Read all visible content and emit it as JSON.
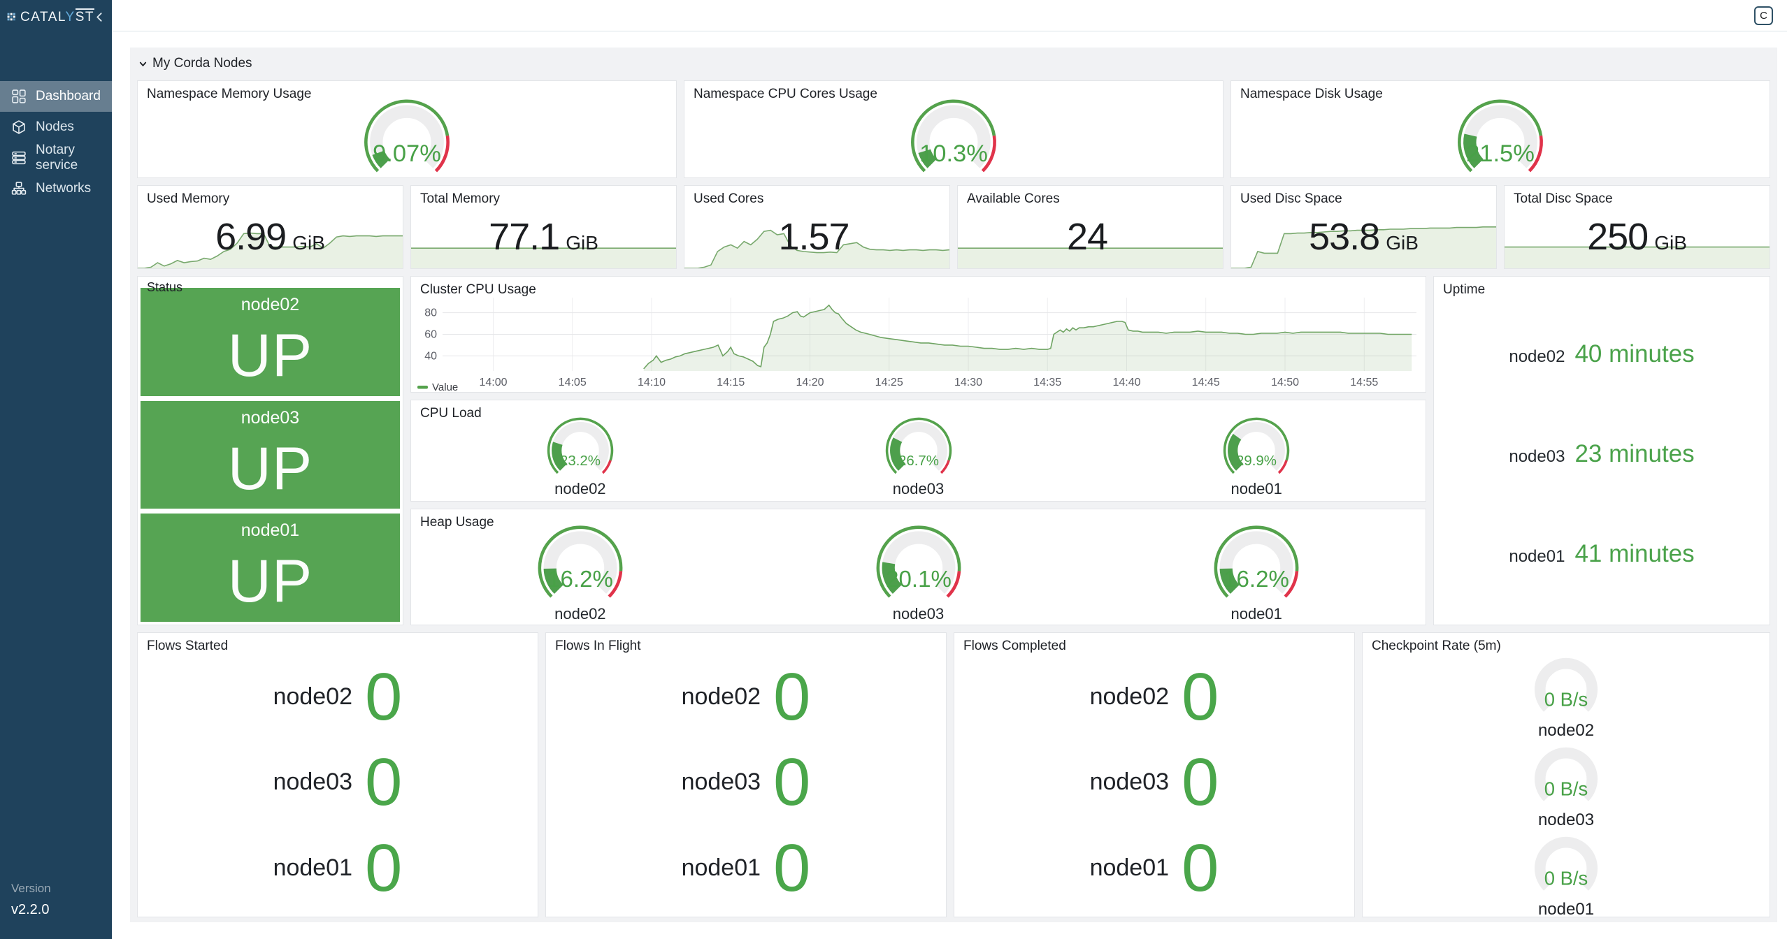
{
  "app": {
    "logo_prefix": "CATAL",
    "logo_y": "Y",
    "logo_suffix": "ST",
    "profile_button": "C"
  },
  "sidebar": {
    "items": [
      {
        "label": "Dashboard",
        "active": true
      },
      {
        "label": "Nodes",
        "active": false
      },
      {
        "label": "Notary service",
        "active": false
      },
      {
        "label": "Networks",
        "active": false
      }
    ],
    "version_label": "Version",
    "version_value": "v2.2.0"
  },
  "row_header": {
    "title": "My Corda Nodes"
  },
  "gauge_panels": [
    {
      "title": "Namespace Memory Usage",
      "text": "9.07%",
      "fraction": 0.0907,
      "threshold": 0.8
    },
    {
      "title": "Namespace CPU Cores Usage",
      "text": "10.3%",
      "fraction": 0.103,
      "threshold": 0.8
    },
    {
      "title": "Namespace Disk Usage",
      "text": "21.5%",
      "fraction": 0.215,
      "threshold": 0.8
    }
  ],
  "stat_panels": [
    {
      "title": "Used Memory",
      "value": "6.99",
      "unit": "GiB",
      "spark": "used_memory_spark"
    },
    {
      "title": "Total Memory",
      "value": "77.1",
      "unit": "GiB",
      "spark": "total_memory_spark"
    },
    {
      "title": "Used Cores",
      "value": "1.57",
      "unit": "",
      "spark": "used_cores_spark"
    },
    {
      "title": "Available Cores",
      "value": "24",
      "unit": "",
      "spark": "available_cores_spark"
    },
    {
      "title": "Used Disc Space",
      "value": "53.8",
      "unit": "GiB",
      "spark": "used_disc_spark"
    },
    {
      "title": "Total Disc Space",
      "value": "250",
      "unit": "GiB",
      "spark": "total_disc_spark"
    }
  ],
  "status_panel": {
    "title": "Status",
    "nodes": [
      {
        "name": "node02",
        "state": "UP"
      },
      {
        "name": "node03",
        "state": "UP"
      },
      {
        "name": "node01",
        "state": "UP"
      }
    ]
  },
  "cluster_panel": {
    "title": "Cluster CPU Usage",
    "legend": "Value"
  },
  "uptime_panel": {
    "title": "Uptime",
    "rows": [
      {
        "node": "node02",
        "value": "40 minutes"
      },
      {
        "node": "node03",
        "value": "23 minutes"
      },
      {
        "node": "node01",
        "value": "41 minutes"
      }
    ]
  },
  "cpu_load_panel": {
    "title": "CPU Load",
    "threshold": 0.9,
    "gauges": [
      {
        "node": "node02",
        "text": "23.2%",
        "fraction": 0.232
      },
      {
        "node": "node03",
        "text": "26.7%",
        "fraction": 0.267
      },
      {
        "node": "node01",
        "text": "29.9%",
        "fraction": 0.299
      }
    ]
  },
  "heap_panel": {
    "title": "Heap Usage",
    "threshold": 0.85,
    "gauges": [
      {
        "node": "node02",
        "text": "16.2%",
        "fraction": 0.162
      },
      {
        "node": "node03",
        "text": "20.1%",
        "fraction": 0.201
      },
      {
        "node": "node01",
        "text": "16.2%",
        "fraction": 0.162
      }
    ]
  },
  "flow_panels": [
    {
      "title": "Flows Started",
      "rows": [
        {
          "node": "node02",
          "value": "0"
        },
        {
          "node": "node03",
          "value": "0"
        },
        {
          "node": "node01",
          "value": "0"
        }
      ]
    },
    {
      "title": "Flows In Flight",
      "rows": [
        {
          "node": "node02",
          "value": "0"
        },
        {
          "node": "node03",
          "value": "0"
        },
        {
          "node": "node01",
          "value": "0"
        }
      ]
    },
    {
      "title": "Flows Completed",
      "rows": [
        {
          "node": "node02",
          "value": "0"
        },
        {
          "node": "node03",
          "value": "0"
        },
        {
          "node": "node01",
          "value": "0"
        }
      ]
    }
  ],
  "checkpoint_panel": {
    "title": "Checkpoint Rate (5m)",
    "gauges": [
      {
        "node": "node02",
        "text": "0 B/s"
      },
      {
        "node": "node03",
        "text": "0 B/s"
      },
      {
        "node": "node01",
        "text": "0 B/s"
      }
    ]
  },
  "colors": {
    "green_text": "#48a147",
    "green_fill": "#4d9f4c",
    "green_box": "#56a453",
    "ring_green": "#54a24c",
    "ring_red": "#e0334a",
    "gauge_bg": "#ededee",
    "spark_line": "#79a96e",
    "spark_fill": "#e9f1e4",
    "chart_line": "#6fa463",
    "chart_fill": "rgba(111,164,99,0.14)"
  },
  "chart_data": [
    {
      "id": "cluster_cpu",
      "type": "line",
      "title": "Cluster CPU Usage",
      "xlabel": "",
      "ylabel": "",
      "ylim": [
        26,
        94
      ],
      "yticks": [
        40,
        60,
        80
      ],
      "xtick_minutes": [
        0,
        5,
        10,
        15,
        20,
        25,
        30,
        35,
        40,
        45,
        50,
        55
      ],
      "xtick_labels": [
        "14:00",
        "14:05",
        "14:10",
        "14:15",
        "14:20",
        "14:25",
        "14:30",
        "14:35",
        "14:40",
        "14:45",
        "14:50",
        "14:55"
      ],
      "xlim_minutes": [
        -3.2,
        58.3
      ],
      "legend": [
        "Value"
      ],
      "legend_position": "bottom-left",
      "grid": true,
      "points": [
        [
          9.5,
          28
        ],
        [
          9.8,
          33
        ],
        [
          10.1,
          36
        ],
        [
          10.3,
          40
        ],
        [
          10.6,
          34
        ],
        [
          10.9,
          36
        ],
        [
          11.2,
          37
        ],
        [
          11.5,
          39
        ],
        [
          11.8,
          40
        ],
        [
          12.1,
          42
        ],
        [
          12.4,
          43
        ],
        [
          12.7,
          44
        ],
        [
          13.0,
          45
        ],
        [
          13.3,
          46
        ],
        [
          13.6,
          47
        ],
        [
          13.9,
          48
        ],
        [
          14.2,
          50
        ],
        [
          14.5,
          40
        ],
        [
          14.8,
          44
        ],
        [
          15.0,
          48
        ],
        [
          15.2,
          42
        ],
        [
          15.5,
          40
        ],
        [
          15.8,
          39
        ],
        [
          16.1,
          37
        ],
        [
          16.4,
          35
        ],
        [
          16.7,
          31
        ],
        [
          16.9,
          30
        ],
        [
          17.1,
          48
        ],
        [
          17.3,
          52
        ],
        [
          17.5,
          60
        ],
        [
          17.7,
          72
        ],
        [
          18.0,
          74
        ],
        [
          18.3,
          75
        ],
        [
          18.6,
          77
        ],
        [
          18.9,
          80
        ],
        [
          19.2,
          81
        ],
        [
          19.4,
          77
        ],
        [
          19.6,
          76
        ],
        [
          19.8,
          78
        ],
        [
          20.0,
          80
        ],
        [
          20.3,
          81
        ],
        [
          20.6,
          82
        ],
        [
          20.9,
          83
        ],
        [
          21.2,
          87
        ],
        [
          21.4,
          83
        ],
        [
          21.6,
          80
        ],
        [
          21.8,
          79
        ],
        [
          22.0,
          75
        ],
        [
          22.3,
          70
        ],
        [
          22.6,
          67
        ],
        [
          22.9,
          64
        ],
        [
          23.2,
          62
        ],
        [
          23.5,
          61
        ],
        [
          24.0,
          59
        ],
        [
          24.5,
          57
        ],
        [
          25.0,
          56
        ],
        [
          25.5,
          55
        ],
        [
          26.0,
          54
        ],
        [
          26.5,
          53
        ],
        [
          27.0,
          52
        ],
        [
          27.5,
          52
        ],
        [
          28.0,
          51
        ],
        [
          28.5,
          50
        ],
        [
          29.0,
          50
        ],
        [
          29.5,
          49
        ],
        [
          30.0,
          49
        ],
        [
          30.5,
          48
        ],
        [
          31.0,
          47
        ],
        [
          31.5,
          47
        ],
        [
          32.0,
          46
        ],
        [
          32.5,
          46
        ],
        [
          33.0,
          47
        ],
        [
          33.5,
          46
        ],
        [
          34.0,
          47
        ],
        [
          34.5,
          46
        ],
        [
          35.0,
          46
        ],
        [
          35.2,
          47
        ],
        [
          35.4,
          60
        ],
        [
          35.6,
          62
        ],
        [
          35.8,
          64
        ],
        [
          36.0,
          62
        ],
        [
          36.2,
          65
        ],
        [
          36.4,
          63
        ],
        [
          36.6,
          66
        ],
        [
          36.8,
          64
        ],
        [
          37.0,
          66
        ],
        [
          37.3,
          66
        ],
        [
          37.6,
          67
        ],
        [
          37.9,
          67
        ],
        [
          38.2,
          68
        ],
        [
          38.5,
          69
        ],
        [
          38.8,
          70
        ],
        [
          39.1,
          71
        ],
        [
          39.4,
          72
        ],
        [
          39.7,
          72
        ],
        [
          39.9,
          71
        ],
        [
          40.1,
          64
        ],
        [
          40.4,
          63
        ],
        [
          40.7,
          63
        ],
        [
          41.0,
          62
        ],
        [
          41.5,
          62
        ],
        [
          42.0,
          62
        ],
        [
          42.5,
          61
        ],
        [
          43.0,
          62
        ],
        [
          43.5,
          62
        ],
        [
          44.0,
          62
        ],
        [
          44.5,
          63
        ],
        [
          45.0,
          62
        ],
        [
          45.5,
          62
        ],
        [
          46.0,
          62
        ],
        [
          46.5,
          61
        ],
        [
          47.0,
          61
        ],
        [
          47.5,
          60
        ],
        [
          48.0,
          60
        ],
        [
          48.5,
          61
        ],
        [
          49.0,
          61
        ],
        [
          49.5,
          61
        ],
        [
          50.0,
          62
        ],
        [
          50.5,
          61
        ],
        [
          51.0,
          62
        ],
        [
          51.5,
          62
        ],
        [
          52.0,
          62
        ],
        [
          52.5,
          62
        ],
        [
          53.0,
          62
        ],
        [
          53.5,
          62
        ],
        [
          54.0,
          61
        ],
        [
          54.5,
          61
        ],
        [
          55.0,
          61
        ],
        [
          55.5,
          61
        ],
        [
          56.0,
          61
        ],
        [
          56.5,
          60
        ],
        [
          57.0,
          60
        ],
        [
          57.5,
          60
        ],
        [
          58.0,
          60
        ]
      ]
    },
    {
      "id": "used_memory_spark",
      "type": "area",
      "ylim": [
        0,
        1
      ],
      "values": [
        0,
        0,
        0.02,
        0.1,
        0.04,
        0.08,
        0.14,
        0.1,
        0.12,
        0.13,
        0.18,
        0.16,
        0.22,
        0.3,
        0.34,
        0.45,
        0.62,
        0.63,
        0.62,
        0.62,
        0.38,
        0.38,
        0.38,
        0.38,
        0.38,
        0.39,
        0.38,
        0.44,
        0.36,
        0.45,
        0.56,
        0.58,
        0.57,
        0.58,
        0.58,
        0.58,
        0.57,
        0.58,
        0.58,
        0.58,
        0.58
      ]
    },
    {
      "id": "total_memory_spark",
      "type": "area",
      "ylim": [
        0,
        1
      ],
      "values": [
        0.36,
        0.36
      ]
    },
    {
      "id": "used_cores_spark",
      "type": "area",
      "ylim": [
        0,
        1
      ],
      "values": [
        0,
        0,
        0,
        0.02,
        0.06,
        0.3,
        0.38,
        0.42,
        0.36,
        0.48,
        0.42,
        0.52,
        0.66,
        0.68,
        0.6,
        0.62,
        0.4,
        0.32,
        0.3,
        0.29,
        0.28,
        0.28,
        0.29,
        0.28,
        0.42,
        0.44,
        0.46,
        0.38,
        0.34,
        0.33,
        0.33,
        0.32,
        0.33,
        0.32,
        0.33,
        0.33,
        0.32,
        0.33,
        0.33,
        0.32,
        0.33
      ]
    },
    {
      "id": "available_cores_spark",
      "type": "area",
      "ylim": [
        0,
        1
      ],
      "values": [
        0.36,
        0.36
      ]
    },
    {
      "id": "used_disc_spark",
      "type": "area",
      "ylim": [
        0,
        1
      ],
      "values": [
        0,
        0,
        0,
        0.02,
        0.3,
        0.27,
        0.27,
        0.27,
        0.62,
        0.62,
        0.63,
        0.63,
        0.64,
        0.64,
        0.65,
        0.66,
        0.66,
        0.67,
        0.67,
        0.68,
        0.68,
        0.68,
        0.69,
        0.69,
        0.7,
        0.7,
        0.7,
        0.71,
        0.71,
        0.71,
        0.72,
        0.72,
        0.72,
        0.72,
        0.73,
        0.73,
        0.73,
        0.73,
        0.74,
        0.74,
        0.74
      ]
    },
    {
      "id": "total_disc_spark",
      "type": "area",
      "ylim": [
        0,
        1
      ],
      "values": [
        0.38,
        0.38
      ]
    }
  ]
}
